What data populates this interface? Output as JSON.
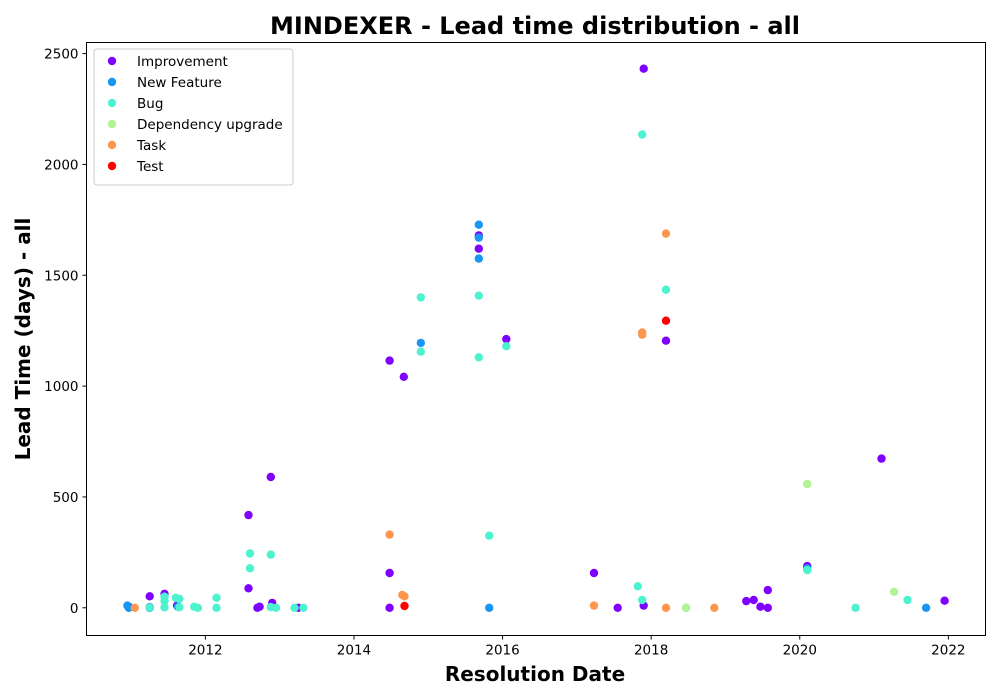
{
  "chart_data": {
    "type": "scatter",
    "title": "MINDEXER - Lead time distribution - all",
    "xlabel": "Resolution Date",
    "ylabel": "Lead Time (days) - all",
    "xlim": [
      2010.4,
      2022.5
    ],
    "ylim": [
      -125,
      2550
    ],
    "xticks": [
      2012,
      2014,
      2016,
      2018,
      2020,
      2022
    ],
    "yticks": [
      0,
      500,
      1000,
      1500,
      2000,
      2500
    ],
    "grid": false,
    "legend_position": "upper-left",
    "series": [
      {
        "name": "Improvement",
        "color": "#8000ff",
        "points": [
          [
            2010.97,
            5
          ],
          [
            2011.25,
            52
          ],
          [
            2011.25,
            3
          ],
          [
            2011.45,
            63
          ],
          [
            2011.62,
            10
          ],
          [
            2012.58,
            418
          ],
          [
            2012.58,
            88
          ],
          [
            2012.7,
            0
          ],
          [
            2012.73,
            5
          ],
          [
            2012.88,
            590
          ],
          [
            2012.9,
            22
          ],
          [
            2013.25,
            0
          ],
          [
            2014.48,
            1115
          ],
          [
            2014.48,
            157
          ],
          [
            2014.48,
            0
          ],
          [
            2014.67,
            1042
          ],
          [
            2015.68,
            1680
          ],
          [
            2015.68,
            1620
          ],
          [
            2016.05,
            1212
          ],
          [
            2017.23,
            157
          ],
          [
            2017.55,
            0
          ],
          [
            2017.9,
            2432
          ],
          [
            2017.9,
            10
          ],
          [
            2018.2,
            1205
          ],
          [
            2019.28,
            30
          ],
          [
            2019.38,
            35
          ],
          [
            2019.47,
            5
          ],
          [
            2019.57,
            80
          ],
          [
            2019.57,
            0
          ],
          [
            2020.1,
            188
          ],
          [
            2021.1,
            673
          ],
          [
            2021.95,
            32
          ]
        ]
      },
      {
        "name": "New Feature",
        "color": "#1996f3",
        "points": [
          [
            2010.95,
            10
          ],
          [
            2010.97,
            0
          ],
          [
            2011.25,
            0
          ],
          [
            2011.63,
            5
          ],
          [
            2014.9,
            1195
          ],
          [
            2015.68,
            1728
          ],
          [
            2015.68,
            1670
          ],
          [
            2015.68,
            1575
          ],
          [
            2015.82,
            0
          ],
          [
            2020.1,
            178
          ],
          [
            2021.7,
            0
          ]
        ]
      },
      {
        "name": "Bug",
        "color": "#4df3ce",
        "points": [
          [
            2011.25,
            2
          ],
          [
            2011.45,
            50
          ],
          [
            2011.45,
            30
          ],
          [
            2011.45,
            2
          ],
          [
            2011.6,
            45
          ],
          [
            2011.65,
            40
          ],
          [
            2011.65,
            2
          ],
          [
            2011.85,
            5
          ],
          [
            2011.9,
            0
          ],
          [
            2012.15,
            45
          ],
          [
            2012.15,
            0
          ],
          [
            2012.6,
            245
          ],
          [
            2012.6,
            178
          ],
          [
            2012.88,
            240
          ],
          [
            2012.88,
            3
          ],
          [
            2012.95,
            0
          ],
          [
            2013.2,
            0
          ],
          [
            2013.32,
            0
          ],
          [
            2014.9,
            1400
          ],
          [
            2014.9,
            1155
          ],
          [
            2015.68,
            1408
          ],
          [
            2015.68,
            1130
          ],
          [
            2015.82,
            325
          ],
          [
            2016.05,
            1180
          ],
          [
            2017.82,
            97
          ],
          [
            2017.88,
            2135
          ],
          [
            2017.88,
            35
          ],
          [
            2018.2,
            1435
          ],
          [
            2018.47,
            0
          ],
          [
            2020.1,
            170
          ],
          [
            2020.75,
            0
          ],
          [
            2021.45,
            35
          ]
        ]
      },
      {
        "name": "Dependency upgrade",
        "color": "#b2f396",
        "points": [
          [
            2018.47,
            0
          ],
          [
            2020.1,
            558
          ],
          [
            2021.27,
            72
          ]
        ]
      },
      {
        "name": "Task",
        "color": "#ff964f",
        "points": [
          [
            2011.05,
            0
          ],
          [
            2014.48,
            330
          ],
          [
            2014.65,
            58
          ],
          [
            2014.68,
            52
          ],
          [
            2017.23,
            10
          ],
          [
            2017.88,
            1242
          ],
          [
            2017.88,
            1232
          ],
          [
            2018.2,
            1688
          ],
          [
            2018.2,
            0
          ],
          [
            2018.85,
            0
          ]
        ]
      },
      {
        "name": "Test",
        "color": "#ff0000",
        "points": [
          [
            2014.68,
            8
          ],
          [
            2018.2,
            1295
          ]
        ]
      }
    ]
  }
}
